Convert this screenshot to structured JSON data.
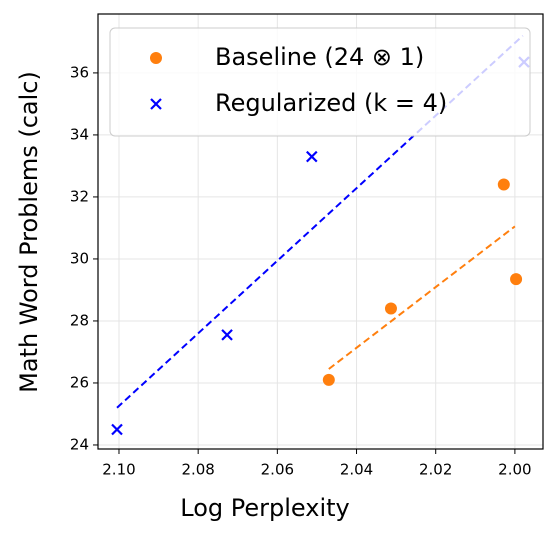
{
  "chart_data": {
    "type": "scatter",
    "xlabel": "Log Perplexity",
    "ylabel": "Math Word Problems (calc)",
    "xlim": [
      2.1053,
      1.9929
    ],
    "ylim": [
      23.87,
      37.9
    ],
    "xticks": [
      {
        "value": 2.1,
        "label": "2.10"
      },
      2.08,
      2.06,
      2.04,
      2.02,
      {
        "value": 2.0,
        "label": "2.00"
      }
    ],
    "yticks": [
      24,
      26,
      28,
      30,
      32,
      34,
      36
    ],
    "x_reversed": true,
    "grid": true,
    "legend": "upper left",
    "series": [
      {
        "name": "Baseline (24 ⊗ 1)",
        "color": "#ff7f0e",
        "marker": "o",
        "x": [
          2.047,
          2.0313,
          2.0028,
          1.9997
        ],
        "values": [
          26.1,
          28.4,
          32.4,
          29.35
        ],
        "trend": {
          "x": [
            2.047,
            2.0
          ],
          "y": [
            26.45,
            31.05
          ]
        }
      },
      {
        "name": "Regularized (k = 4)",
        "color": "#0000ff",
        "marker": "x",
        "x": [
          2.1005,
          2.0727,
          2.0513,
          1.9977
        ],
        "values": [
          24.5,
          27.55,
          33.3,
          36.35
        ],
        "trend": {
          "x": [
            2.1005,
            1.998
          ],
          "y": [
            25.2,
            37.2
          ]
        }
      }
    ]
  }
}
